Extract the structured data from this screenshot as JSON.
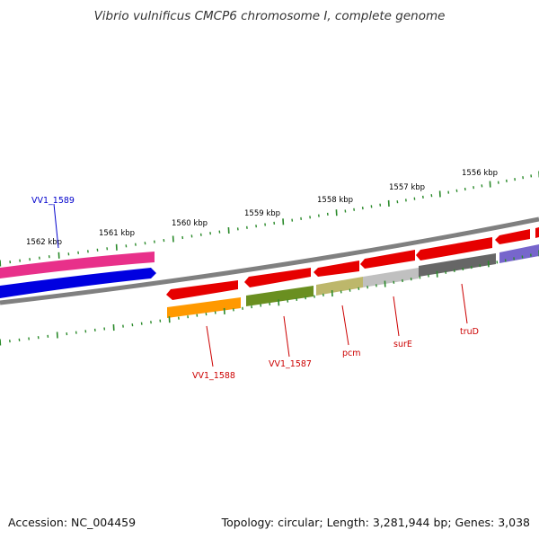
{
  "title": "Vibrio vulnificus CMCP6 chromosome I, complete genome",
  "footer": {
    "accession": "Accession: NC_004459",
    "summary": "Topology: circular; Length: 3,281,944 bp; Genes: 3,038"
  },
  "scale_labels": [
    "1562 kbp",
    "1561 kbp",
    "1560 kbp",
    "1559 kbp",
    "1558 kbp",
    "1557 kbp",
    "1556 kbp"
  ],
  "colors": {
    "backbone": "#808080",
    "tick": "#2a8a2a",
    "label_red": "#cc0000",
    "label_blue": "#0000cc"
  },
  "genes": [
    {
      "name": "VV1_1589",
      "color": "#0000cc"
    },
    {
      "name": "VV1_1588",
      "color": "#cc0000"
    },
    {
      "name": "VV1_1587",
      "color": "#cc0000"
    },
    {
      "name": "pcm",
      "color": "#cc0000"
    },
    {
      "name": "surE",
      "color": "#cc0000"
    },
    {
      "name": "truD",
      "color": "#cc0000"
    }
  ]
}
